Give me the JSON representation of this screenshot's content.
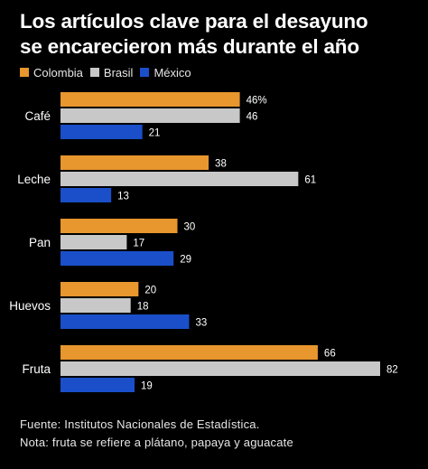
{
  "title_line1": "Los artículos clave para el desayuno",
  "title_line2": "se encarecieron más durante el año",
  "colors": {
    "Colombia": "#E8962E",
    "Brasil": "#C8C8C8",
    "México": "#1A4FC9"
  },
  "chart_data": {
    "type": "bar",
    "orientation": "horizontal",
    "title": "Los artículos clave para el desayuno se encarecieron más durante el año",
    "categories": [
      "Café",
      "Leche",
      "Pan",
      "Huevos",
      "Fruta"
    ],
    "series": [
      {
        "name": "Colombia",
        "values": [
          46,
          38,
          30,
          20,
          66
        ],
        "labels": [
          "46%",
          "38",
          "30",
          "20",
          "66"
        ]
      },
      {
        "name": "Brasil",
        "values": [
          46,
          61,
          17,
          18,
          82
        ],
        "labels": [
          "46",
          "61",
          "17",
          "18",
          "82"
        ]
      },
      {
        "name": "México",
        "values": [
          21,
          13,
          29,
          33,
          19
        ],
        "labels": [
          "21",
          "13",
          "29",
          "33",
          "19"
        ]
      }
    ],
    "xlim": [
      0,
      82
    ],
    "grid": false,
    "legend_position": "top-left"
  },
  "footer": {
    "source": "Fuente: Institutos Nacionales de Estadística.",
    "note": "Nota: fruta se refiere a plátano, papaya y aguacate"
  }
}
